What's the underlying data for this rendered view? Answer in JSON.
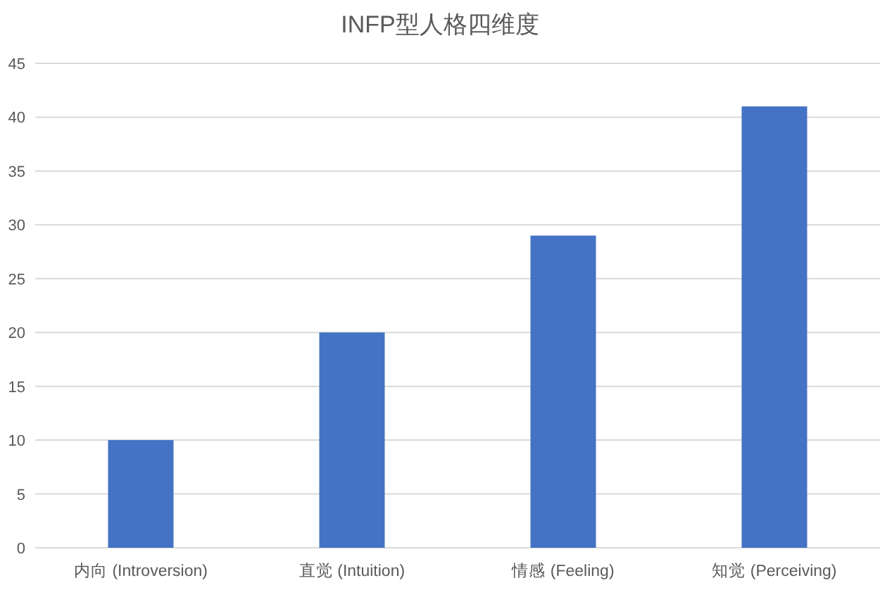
{
  "chart_data": {
    "type": "bar",
    "title": "INFP型人格四维度",
    "categories": [
      "内向 (Introversion)",
      "直觉 (Intuition)",
      "情感 (Feeling)",
      "知觉 (Perceiving)"
    ],
    "values": [
      10,
      20,
      29,
      41
    ],
    "color": "#4472c4",
    "ylim": [
      0,
      45
    ],
    "yticks": [
      0,
      5,
      10,
      15,
      20,
      25,
      30,
      35,
      40,
      45
    ],
    "grid": "y"
  }
}
